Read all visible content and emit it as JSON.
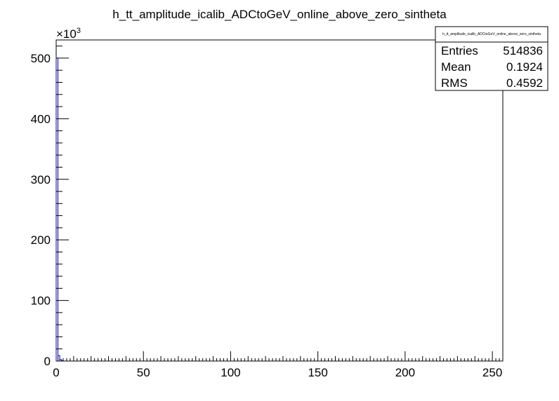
{
  "chart_data": {
    "type": "bar",
    "title": "h_tt_amplitude_icalib_ADCtoGeV_online_above_zero_sintheta",
    "xlabel": "",
    "ylabel": "",
    "xlim": [
      0,
      256
    ],
    "ylim": [
      0,
      530000
    ],
    "y_multiplier_label": "×10",
    "y_multiplier_exponent": "3",
    "x_ticks": [
      "0",
      "50",
      "100",
      "150",
      "200",
      "250"
    ],
    "x_tick_values": [
      0,
      50,
      100,
      150,
      200,
      250
    ],
    "y_ticks": [
      "0",
      "100",
      "200",
      "300",
      "400",
      "500"
    ],
    "y_tick_values": [
      0,
      100000,
      200000,
      300000,
      400000,
      500000
    ],
    "bins": [
      {
        "x0": 0,
        "x1": 1,
        "value": 500000
      },
      {
        "x0": 1,
        "x1": 2,
        "value": 9000
      },
      {
        "x0": 2,
        "x1": 3,
        "value": 2500
      },
      {
        "x0": 3,
        "x1": 4,
        "value": 900
      }
    ],
    "line_color": "#000099",
    "stats": {
      "name": "h_tt_amplitude_icalib_ADCtoGeV_online_above_zero_sintheta",
      "rows": [
        {
          "label": "Entries",
          "value": "514836"
        },
        {
          "label": "Mean",
          "value": "0.1924"
        },
        {
          "label": "RMS",
          "value": "0.4592"
        }
      ]
    }
  }
}
